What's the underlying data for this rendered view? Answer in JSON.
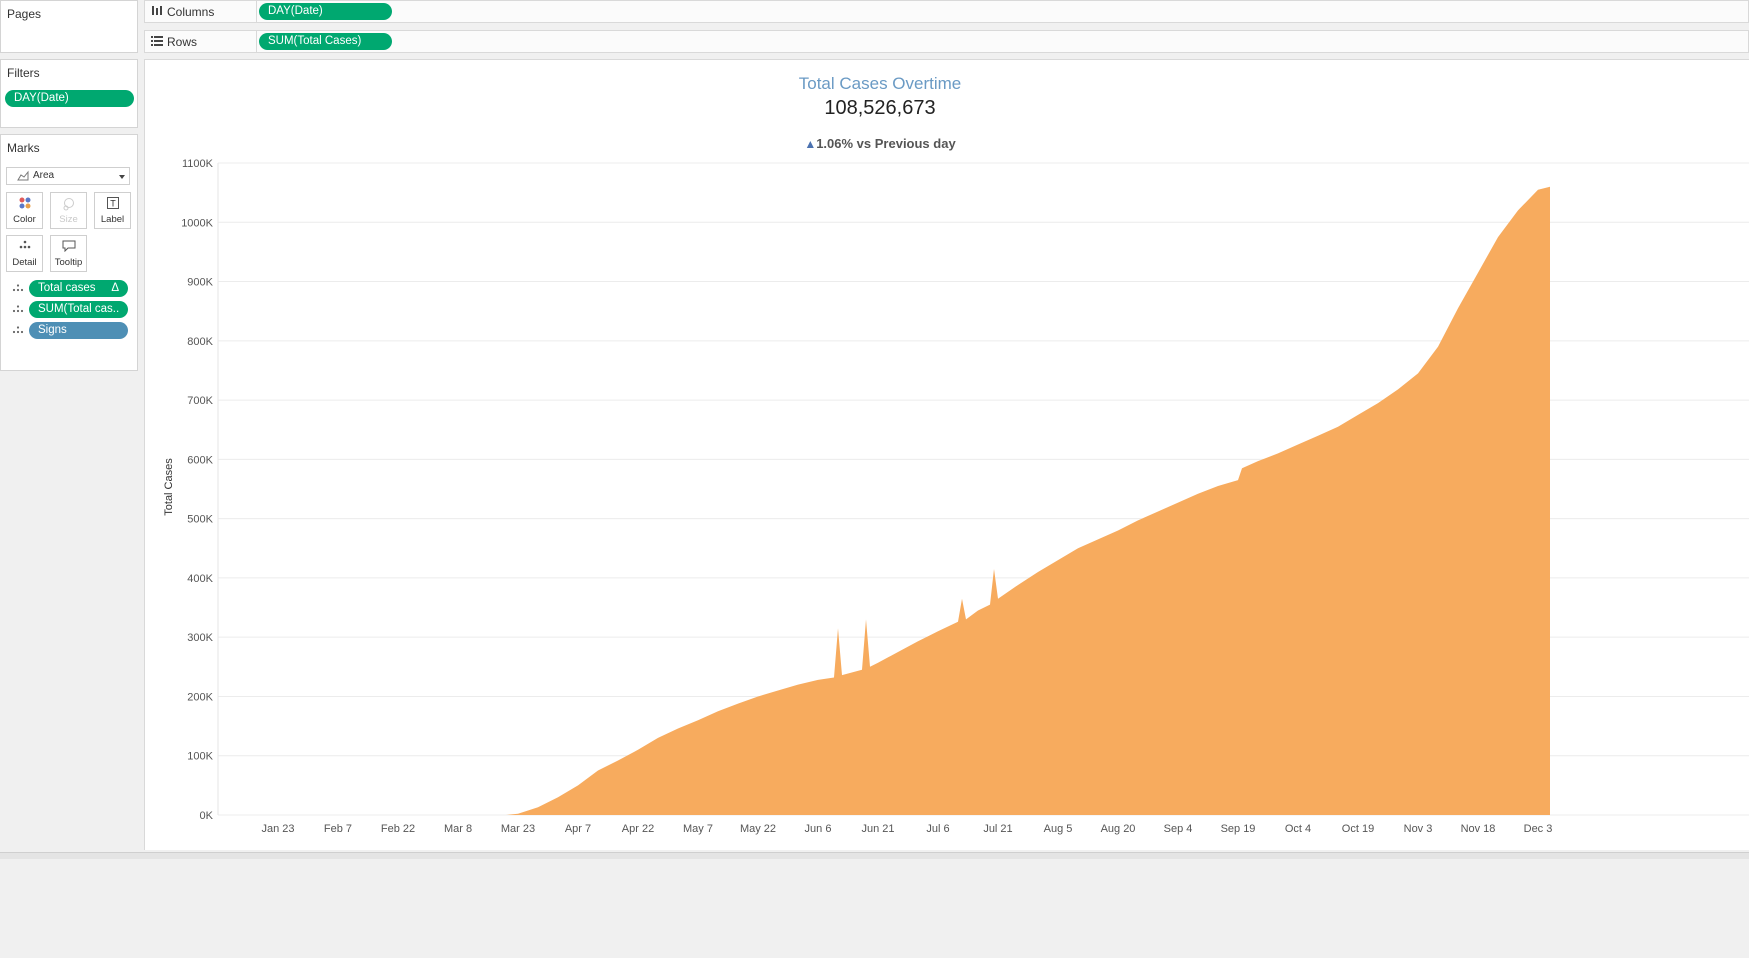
{
  "pages_card": {
    "title": "Pages"
  },
  "filters_card": {
    "title": "Filters",
    "pills": [
      "DAY(Date)"
    ]
  },
  "marks_card": {
    "title": "Marks",
    "mark_type": "Area",
    "buttons": {
      "color": "Color",
      "size": "Size",
      "label": "Label",
      "detail": "Detail",
      "tooltip": "Tooltip"
    },
    "fields": [
      {
        "label": "Total cases",
        "suffix": "Δ",
        "color": "#00a870"
      },
      {
        "label": "SUM(Total cas..",
        "suffix": "",
        "color": "#00a870"
      },
      {
        "label": "Signs",
        "suffix": "",
        "color": "#4e8fb5"
      }
    ]
  },
  "shelves": {
    "columns": {
      "label": "Columns",
      "pill": "DAY(Date)"
    },
    "rows": {
      "label": "Rows",
      "pill": "SUM(Total Cases)"
    }
  },
  "colors": {
    "area": "#f7ab5e",
    "title": "#6a9ac4",
    "pill_green": "#00a870",
    "pill_blue": "#4e8fb5",
    "triangle": "#4b72b0"
  },
  "chart_data": {
    "type": "area",
    "title": "Total Cases Overtime",
    "big_number": "108,526,673",
    "change_indicator": "▲",
    "change_text": "1.06% vs Previous day",
    "ylabel": "Total Cases",
    "xlabel": "",
    "ylim": [
      0,
      1100000
    ],
    "y_ticks": [
      0,
      100000,
      200000,
      300000,
      400000,
      500000,
      600000,
      700000,
      800000,
      900000,
      1000000,
      1100000
    ],
    "y_tick_labels": [
      "0K",
      "100K",
      "200K",
      "300K",
      "400K",
      "500K",
      "600K",
      "700K",
      "800K",
      "900K",
      "1000K",
      "1100K"
    ],
    "x_tick_labels": [
      "Jan 23",
      "Feb 7",
      "Feb 22",
      "Mar 8",
      "Mar 23",
      "Apr 7",
      "Apr 22",
      "May 7",
      "May 22",
      "Jun 6",
      "Jun 21",
      "Jul 6",
      "Jul 21",
      "Aug 5",
      "Aug 20",
      "Sep 4",
      "Sep 19",
      "Oct 4",
      "Oct 19",
      "Nov 3",
      "Nov 18",
      "Dec 3"
    ],
    "x_range": [
      "Jan 23",
      "Dec 6"
    ],
    "x": [
      "Jan 23",
      "Feb 7",
      "Feb 22",
      "Mar 8",
      "Mar 20",
      "Mar 23",
      "Mar 28",
      "Apr 2",
      "Apr 7",
      "Apr 12",
      "Apr 17",
      "Apr 22",
      "Apr 27",
      "May 2",
      "May 7",
      "May 12",
      "May 17",
      "May 22",
      "May 27",
      "Jun 1",
      "Jun 6",
      "Jun 10",
      "Jun 11",
      "Jun 12",
      "Jun 17",
      "Jun 18",
      "Jun 19",
      "Jun 21",
      "Jun 26",
      "Jul 1",
      "Jul 6",
      "Jul 11",
      "Jul 12",
      "Jul 13",
      "Jul 16",
      "Jul 19",
      "Jul 20",
      "Jul 21",
      "Jul 26",
      "Jul 31",
      "Aug 5",
      "Aug 10",
      "Aug 15",
      "Aug 20",
      "Aug 25",
      "Aug 30",
      "Sep 4",
      "Sep 9",
      "Sep 14",
      "Sep 19",
      "Sep 20",
      "Sep 24",
      "Sep 29",
      "Oct 4",
      "Oct 9",
      "Oct 14",
      "Oct 19",
      "Oct 24",
      "Oct 29",
      "Nov 3",
      "Nov 8",
      "Nov 13",
      "Nov 18",
      "Nov 23",
      "Nov 28",
      "Dec 3",
      "Dec 6"
    ],
    "values": [
      0,
      0,
      0,
      0,
      0,
      2000,
      13000,
      30000,
      50000,
      75000,
      92000,
      110000,
      130000,
      146000,
      160000,
      175000,
      188000,
      200000,
      210000,
      220000,
      228000,
      232000,
      315000,
      236000,
      245000,
      330000,
      250000,
      257000,
      275000,
      293000,
      310000,
      326000,
      365000,
      330000,
      345000,
      355000,
      415000,
      365000,
      388000,
      410000,
      430000,
      450000,
      465000,
      480000,
      497000,
      512000,
      527000,
      542000,
      555000,
      565000,
      585000,
      597000,
      610000,
      625000,
      640000,
      655000,
      675000,
      695000,
      718000,
      745000,
      790000,
      855000,
      915000,
      975000,
      1020000,
      1055000,
      1060000
    ]
  }
}
